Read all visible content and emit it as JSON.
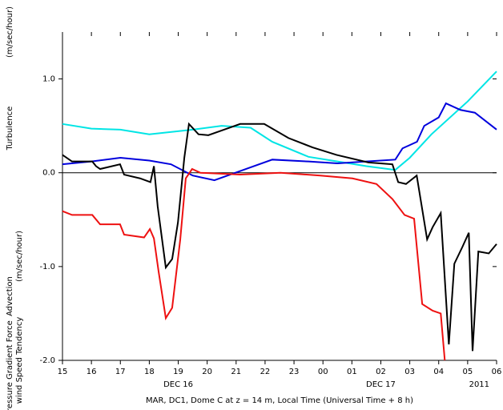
{
  "chart_data": {
    "type": "line",
    "xlabel": "MAR, DC1, Dome C at z = 14 m, Local Time (Universal Time + 8 h)",
    "ylabel_parts": [
      {
        "text": "Pressure Gradient Force",
        "color": "#00e5e5"
      },
      {
        "text": "wind Speed Tendency",
        "color": "#000000"
      },
      {
        "text": "Advection",
        "color": "#0000dd"
      },
      {
        "text": "(m/sec/hour)",
        "color": "#000000"
      },
      {
        "text": "Turbulence",
        "color": "#ee1111"
      },
      {
        "text": "(m/sec/hour)",
        "color": "#000000"
      }
    ],
    "annotations": [
      "DEC 16",
      "DEC 17",
      "2011"
    ],
    "xlim": [
      0,
      15
    ],
    "xticks": [
      {
        "value": 0,
        "label": "15"
      },
      {
        "value": 1,
        "label": "16"
      },
      {
        "value": 2,
        "label": "17"
      },
      {
        "value": 3,
        "label": "18"
      },
      {
        "value": 4,
        "label": "19"
      },
      {
        "value": 5,
        "label": "20"
      },
      {
        "value": 6,
        "label": "21"
      },
      {
        "value": 7,
        "label": "22"
      },
      {
        "value": 8,
        "label": "23"
      },
      {
        "value": 9,
        "label": "00"
      },
      {
        "value": 10,
        "label": "01"
      },
      {
        "value": 11,
        "label": "02"
      },
      {
        "value": 12,
        "label": "03"
      },
      {
        "value": 13,
        "label": "04"
      },
      {
        "value": 14,
        "label": "05"
      },
      {
        "value": 15,
        "label": "06"
      }
    ],
    "ylim": [
      -2,
      1.5
    ],
    "yticks": [
      {
        "value": -2,
        "label": "-2.0"
      },
      {
        "value": -1,
        "label": "-1.0"
      },
      {
        "value": 0,
        "label": "0.0"
      },
      {
        "value": 1,
        "label": "1.0"
      }
    ],
    "series": [
      {
        "name": "Pressure Gradient Force",
        "color": "#00e5e5",
        "x": [
          0,
          1,
          2,
          3,
          4.5,
          5.5,
          6.5,
          7.25,
          8.5,
          9.5,
          10.5,
          11.5,
          12,
          12.75,
          14,
          15
        ],
        "values": [
          0.52,
          0.47,
          0.46,
          0.41,
          0.46,
          0.5,
          0.48,
          0.33,
          0.17,
          0.12,
          0.07,
          0.03,
          0.16,
          0.41,
          0.76,
          1.08
        ]
      },
      {
        "name": "Advection",
        "color": "#0000dd",
        "x": [
          0,
          1,
          2,
          3,
          3.75,
          4.5,
          5.25,
          6.25,
          7.25,
          8.5,
          9.5,
          10.5,
          11.5,
          11.75,
          12.25,
          12.5,
          13,
          13.25,
          13.75,
          14.25,
          15
        ],
        "values": [
          0.09,
          0.12,
          0.16,
          0.13,
          0.09,
          -0.03,
          -0.08,
          0.03,
          0.14,
          0.12,
          0.1,
          0.12,
          0.14,
          0.26,
          0.33,
          0.5,
          0.59,
          0.74,
          0.67,
          0.64,
          0.46
        ]
      },
      {
        "name": "Turbulence",
        "color": "#ee1111",
        "x": [
          0,
          0.33,
          1.03,
          1.3,
          1.99,
          2.13,
          2.82,
          3.02,
          3.16,
          3.32,
          3.57,
          3.79,
          4.07,
          4.26,
          4.48,
          4.76,
          6.14,
          7.53,
          8.91,
          10.02,
          10.85,
          11.4,
          11.82,
          12.15,
          12.43,
          12.79,
          13.07,
          13.21
        ],
        "values": [
          -0.41,
          -0.45,
          -0.45,
          -0.55,
          -0.55,
          -0.66,
          -0.69,
          -0.6,
          -0.7,
          -1.05,
          -1.55,
          -1.44,
          -0.71,
          -0.06,
          0.04,
          0,
          -0.02,
          0,
          -0.03,
          -0.06,
          -0.12,
          -0.28,
          -0.45,
          -0.49,
          -1.4,
          -1.47,
          -1.5,
          -2.0
        ]
      },
      {
        "name": "wind Speed Tendency",
        "color": "#000000",
        "x": [
          0,
          0.33,
          1.03,
          1.16,
          1.3,
          1.99,
          2.13,
          2.68,
          3.04,
          3.16,
          3.29,
          3.57,
          3.79,
          3.99,
          4.21,
          4.37,
          4.7,
          5.04,
          5.59,
          6.14,
          6.97,
          7.81,
          8.64,
          9.47,
          10.57,
          11.4,
          11.6,
          11.87,
          12.24,
          12.6,
          12.79,
          13.07,
          13.35,
          13.54,
          13.82,
          14.04,
          14.17,
          14.37,
          14.73,
          15
        ],
        "values": [
          0.19,
          0.12,
          0.12,
          0.07,
          0.04,
          0.09,
          -0.02,
          -0.06,
          -0.1,
          0.07,
          -0.36,
          -1.01,
          -0.92,
          -0.53,
          0.16,
          0.52,
          0.41,
          0.4,
          0.46,
          0.52,
          0.52,
          0.37,
          0.27,
          0.19,
          0.11,
          0.09,
          -0.1,
          -0.12,
          -0.03,
          -0.71,
          -0.58,
          -0.43,
          -1.83,
          -0.97,
          -0.79,
          -0.64,
          -1.9,
          -0.84,
          -0.86,
          -0.76
        ]
      }
    ]
  }
}
